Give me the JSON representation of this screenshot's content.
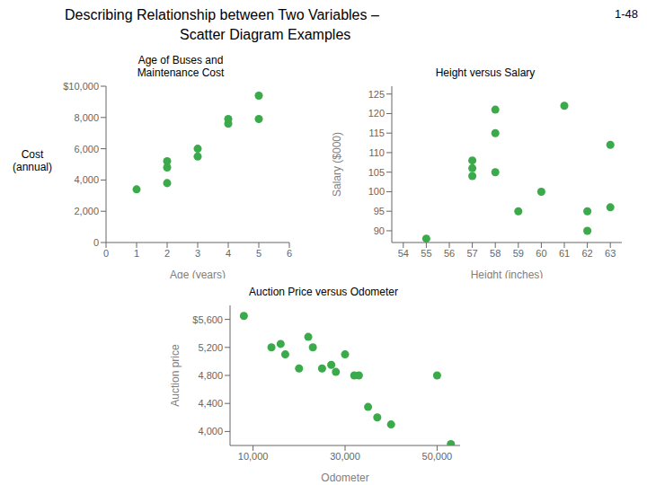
{
  "title": "Describing Relationship between Two Variables –\nScatter Diagram Examples",
  "annotations": [
    "1-48"
  ],
  "chart_data": [
    {
      "type": "scatter",
      "title": "Age of Buses and\nMaintenance Cost",
      "xlabel": "Age (years)",
      "ylabel": "Cost\n(annual)",
      "color": "#3aaa4a",
      "xlim": [
        0,
        6
      ],
      "ylim": [
        0,
        10000
      ],
      "xticks": [
        0,
        1,
        2,
        3,
        4,
        5,
        6
      ],
      "yticks": [
        0,
        {
          "value": 2000,
          "label": "2,000"
        },
        {
          "value": 4000,
          "label": "4,000"
        },
        {
          "value": 6000,
          "label": "6,000"
        },
        {
          "value": 8000,
          "label": "8,000"
        },
        {
          "value": 10000,
          "label": "$10,000"
        }
      ],
      "x": [
        1,
        2,
        2,
        2,
        3,
        3,
        4,
        4,
        5,
        5
      ],
      "values": [
        3400,
        3800,
        4800,
        5200,
        5500,
        6000,
        7600,
        7900,
        9400,
        7900
      ]
    },
    {
      "type": "scatter",
      "title": "Height versus Salary",
      "xlabel": "Height (inches)",
      "ylabel": "Salary ($000)",
      "color": "#3aaa4a",
      "xlim": [
        53.5,
        63.5
      ],
      "ylim": [
        87,
        127
      ],
      "xticks": [
        54,
        55,
        56,
        57,
        58,
        59,
        60,
        61,
        62,
        63
      ],
      "yticks": [
        90,
        95,
        100,
        105,
        110,
        115,
        120,
        125
      ],
      "x": [
        55,
        57,
        57,
        57,
        58,
        58,
        58,
        59,
        60,
        61,
        62,
        62,
        63,
        63
      ],
      "values": [
        88,
        108,
        106,
        104,
        121,
        115,
        105,
        95,
        100,
        122,
        90,
        95,
        112,
        96
      ]
    },
    {
      "type": "scatter",
      "title": "Auction Price versus Odometer",
      "xlabel": "Odometer",
      "ylabel": "Auction price",
      "color": "#3aaa4a",
      "xlim": [
        5000,
        55000
      ],
      "ylim": [
        3800,
        5800
      ],
      "xticks": [
        {
          "value": 10000,
          "label": "10,000"
        },
        {
          "value": 30000,
          "label": "30,000"
        },
        {
          "value": 50000,
          "label": "50,000"
        }
      ],
      "yticks": [
        {
          "value": 4000,
          "label": "4,000"
        },
        {
          "value": 4400,
          "label": "4,400"
        },
        {
          "value": 4800,
          "label": "4,800"
        },
        {
          "value": 5200,
          "label": "5,200"
        },
        {
          "value": 5600,
          "label": "$5,600"
        }
      ],
      "x": [
        8000,
        14000,
        16000,
        17000,
        20000,
        22000,
        23000,
        25000,
        27000,
        28000,
        30000,
        32000,
        33000,
        35000,
        37000,
        40000,
        50000,
        53000
      ],
      "values": [
        5650,
        5200,
        5250,
        5100,
        4900,
        5350,
        5200,
        4900,
        4950,
        4850,
        5100,
        4800,
        4800,
        4350,
        4200,
        4100,
        4800,
        3820
      ]
    }
  ]
}
